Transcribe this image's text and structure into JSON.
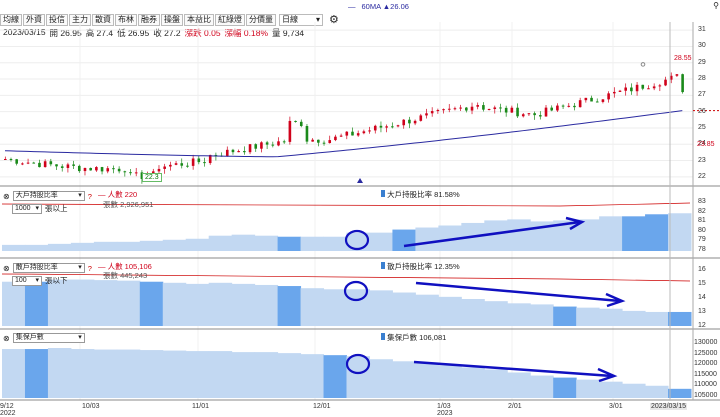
{
  "ma_legend": "60MA ▲26.06",
  "toolbar": {
    "buttons": [
      "均線",
      "外資",
      "投信",
      "主力",
      "散資",
      "布林",
      "融券",
      "操盤",
      "本益比",
      "紅綠燈",
      "分價量"
    ],
    "period": "日線"
  },
  "info": {
    "date": "2023/03/15",
    "open": "開 26.95",
    "high": "高 27.4",
    "low": "低 26.95",
    "close": "收 27.2",
    "change": "漲跌 0.05",
    "pct": "漲幅 0.18%",
    "vol": "量 9,734"
  },
  "price_axis": [
    "31",
    "30",
    "29",
    "28",
    "27",
    "26",
    "25",
    "24",
    "23",
    "22"
  ],
  "labels": {
    "low": "22.3",
    "last": "28.55",
    "ma_val": "23.85"
  },
  "panel1": {
    "select": "大戶持股比率",
    "lots": "1000",
    "cond": "張以上",
    "line1": "人數 220",
    "line2": "張數 2,926,951",
    "right": "大戶持股比率 81.58%",
    "axis": [
      "83",
      "82",
      "81",
      "80",
      "79",
      "78"
    ]
  },
  "panel2": {
    "select": "散戶持股比率",
    "lots": "100",
    "cond": "張以下",
    "line1": "人數 105,106",
    "line2": "張數 445,243",
    "right": "散戶持股比率 12.35%",
    "axis": [
      "16",
      "15",
      "14",
      "13",
      "12"
    ]
  },
  "panel3": {
    "select": "集保戶數",
    "right": "集保戶數 106,081",
    "axis": [
      "130000",
      "125000",
      "120000",
      "115000",
      "110000",
      "105000"
    ]
  },
  "x_axis": [
    "9/12",
    "10/03",
    "11/01",
    "12/01",
    "1/03",
    "2/01",
    "3/01"
  ],
  "x_years": [
    "2022",
    "2023"
  ],
  "x_current": "2023/03/15",
  "colors": {
    "up": "#d0021b",
    "down": "#1a8a1a",
    "ma": "#2a2aa0",
    "fill": "#c2d8f2",
    "fill_dark": "#6aa6ec",
    "arrow": "#1010c0"
  },
  "chart_data": {
    "type": "candlestick",
    "series": [
      {
        "name": "60MA",
        "last": 26.06
      }
    ],
    "price_range": [
      21.5,
      31.5
    ],
    "last_close": 27.2,
    "high_marker": 28.55,
    "low_marker": 22.3,
    "panel1_range": [
      77.5,
      83.5
    ],
    "panel2_range": [
      11.5,
      16.5
    ],
    "panel3_range": [
      103000,
      131000
    ]
  }
}
